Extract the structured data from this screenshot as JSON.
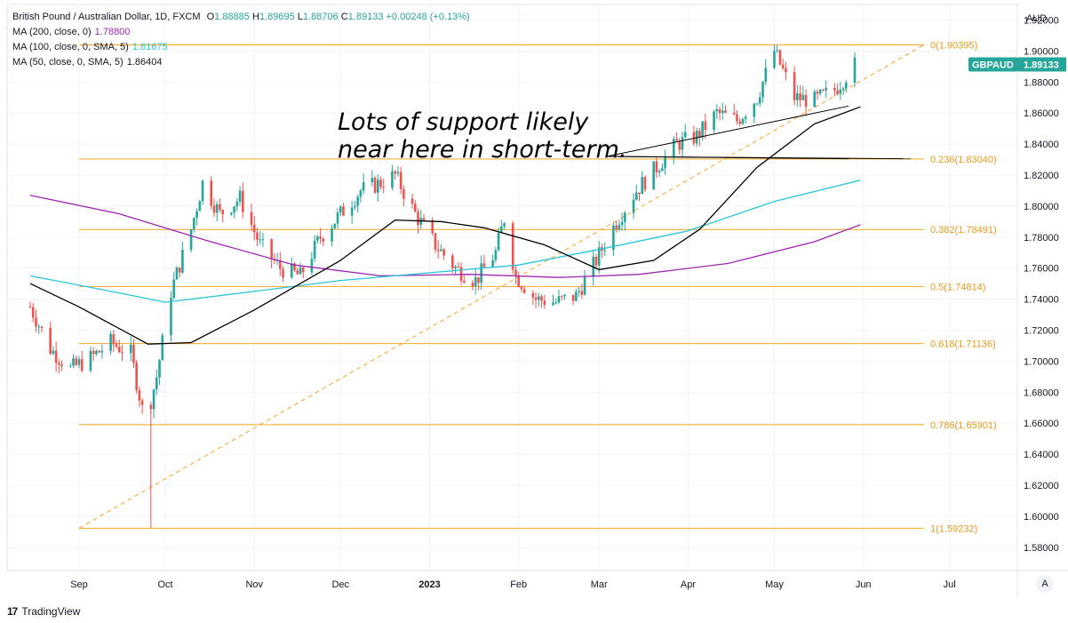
{
  "header": {
    "symbol_title": "British Pound / Australian Dollar, 1D, FXCM",
    "ohlc": {
      "open_label": "O",
      "open": "1.88885",
      "high_label": "H",
      "high": "1.89695",
      "low_label": "L",
      "low": "1.88706",
      "close_label": "C",
      "close": "1.89133",
      "change": "+0.00248 (+0.13%)"
    },
    "indicators": [
      {
        "label": "MA (200, close, 0)",
        "value": "1.78800",
        "color": "#9c27b0"
      },
      {
        "label": "MA (100, close, 0, SMA, 5)",
        "value": "1.81675",
        "color": "#26c6da"
      },
      {
        "label": "MA (50, close, 0, SMA, 5)",
        "value": "1.86404",
        "color": "#000000"
      }
    ]
  },
  "chart_data": {
    "type": "candlestick",
    "symbol": "GBPAUD",
    "last_price": "1.89133",
    "currency": "AUD",
    "ylim": [
      1.565,
      1.93
    ],
    "y_ticks": [
      "1.92000",
      "1.90000",
      "1.88000",
      "1.86000",
      "1.84000",
      "1.82000",
      "1.80000",
      "1.78000",
      "1.76000",
      "1.74000",
      "1.72000",
      "1.70000",
      "1.68000",
      "1.66000",
      "1.64000",
      "1.62000",
      "1.60000",
      "1.58000"
    ],
    "x_labels": [
      "Sep",
      "Oct",
      "Nov",
      "Dec",
      "2023",
      "Feb",
      "Mar",
      "Apr",
      "May",
      "Jun",
      "Jul"
    ],
    "fib_levels": [
      {
        "ratio": "0",
        "price": 1.90395,
        "label": "0(1.90395)"
      },
      {
        "ratio": "0.236",
        "price": 1.8304,
        "label": "0.236(1.83040)"
      },
      {
        "ratio": "0.382",
        "price": 1.78491,
        "label": "0.382(1.78491)"
      },
      {
        "ratio": "0.5",
        "price": 1.74814,
        "label": "0.5(1.74814)"
      },
      {
        "ratio": "0.618",
        "price": 1.71136,
        "label": "0.618(1.71136)"
      },
      {
        "ratio": "0.786",
        "price": 1.65901,
        "label": "0.786(1.65901)"
      },
      {
        "ratio": "1",
        "price": 1.59232,
        "label": "1(1.59232)"
      }
    ],
    "annotation": [
      "Lots of support likely",
      "near here in short-term."
    ],
    "price_path": [
      [
        "2022-08-15",
        1.735
      ],
      [
        "2022-08-22",
        1.708
      ],
      [
        "2022-08-29",
        1.695
      ],
      [
        "2022-09-05",
        1.702
      ],
      [
        "2022-09-12",
        1.712
      ],
      [
        "2022-09-19",
        1.705
      ],
      [
        "2022-09-24",
        1.66
      ],
      [
        "2022-09-28",
        1.69
      ],
      [
        "2022-10-03",
        1.745
      ],
      [
        "2022-10-10",
        1.785
      ],
      [
        "2022-10-14",
        1.815
      ],
      [
        "2022-10-20",
        1.795
      ],
      [
        "2022-10-27",
        1.805
      ],
      [
        "2022-11-03",
        1.775
      ],
      [
        "2022-11-10",
        1.76
      ],
      [
        "2022-11-17",
        1.755
      ],
      [
        "2022-11-24",
        1.78
      ],
      [
        "2022-12-01",
        1.795
      ],
      [
        "2022-12-08",
        1.81
      ],
      [
        "2022-12-15",
        1.815
      ],
      [
        "2022-12-20",
        1.82
      ],
      [
        "2022-12-27",
        1.795
      ],
      [
        "2023-01-03",
        1.775
      ],
      [
        "2023-01-10",
        1.76
      ],
      [
        "2023-01-17",
        1.752
      ],
      [
        "2023-01-24",
        1.77
      ],
      [
        "2023-01-27",
        1.792
      ],
      [
        "2023-01-31",
        1.755
      ],
      [
        "2023-02-07",
        1.74
      ],
      [
        "2023-02-14",
        1.738
      ],
      [
        "2023-02-21",
        1.742
      ],
      [
        "2023-02-28",
        1.765
      ],
      [
        "2023-03-07",
        1.79
      ],
      [
        "2023-03-14",
        1.81
      ],
      [
        "2023-03-21",
        1.825
      ],
      [
        "2023-03-28",
        1.84
      ],
      [
        "2023-04-04",
        1.845
      ],
      [
        "2023-04-11",
        1.86
      ],
      [
        "2023-04-18",
        1.855
      ],
      [
        "2023-04-25",
        1.87
      ],
      [
        "2023-05-01",
        1.9
      ],
      [
        "2023-05-08",
        1.87
      ],
      [
        "2023-05-15",
        1.868
      ],
      [
        "2023-05-22",
        1.875
      ],
      [
        "2023-05-29",
        1.891
      ]
    ],
    "ma200": [
      [
        "2022-08-15",
        1.807
      ],
      [
        "2022-09-15",
        1.795
      ],
      [
        "2022-10-15",
        1.778
      ],
      [
        "2022-11-15",
        1.762
      ],
      [
        "2022-12-15",
        1.755
      ],
      [
        "2023-01-15",
        1.756
      ],
      [
        "2023-02-15",
        1.754
      ],
      [
        "2023-03-15",
        1.756
      ],
      [
        "2023-04-15",
        1.763
      ],
      [
        "2023-05-15",
        1.777
      ],
      [
        "2023-05-31",
        1.788
      ]
    ],
    "ma100": [
      [
        "2022-08-15",
        1.755
      ],
      [
        "2022-09-15",
        1.744
      ],
      [
        "2022-10-01",
        1.738
      ],
      [
        "2022-11-01",
        1.745
      ],
      [
        "2022-12-01",
        1.752
      ],
      [
        "2023-01-01",
        1.757
      ],
      [
        "2023-02-01",
        1.762
      ],
      [
        "2023-03-01",
        1.772
      ],
      [
        "2023-04-01",
        1.784
      ],
      [
        "2023-05-01",
        1.803
      ],
      [
        "2023-05-31",
        1.8167
      ]
    ],
    "ma50": [
      [
        "2022-08-15",
        1.75
      ],
      [
        "2022-09-01",
        1.735
      ],
      [
        "2022-09-25",
        1.711
      ],
      [
        "2022-10-10",
        1.712
      ],
      [
        "2022-11-01",
        1.733
      ],
      [
        "2022-12-01",
        1.765
      ],
      [
        "2022-12-20",
        1.791
      ],
      [
        "2023-01-05",
        1.79
      ],
      [
        "2023-01-20",
        1.786
      ],
      [
        "2023-02-10",
        1.775
      ],
      [
        "2023-03-01",
        1.759
      ],
      [
        "2023-03-20",
        1.765
      ],
      [
        "2023-04-05",
        1.785
      ],
      [
        "2023-04-25",
        1.825
      ],
      [
        "2023-05-15",
        1.853
      ],
      [
        "2023-05-31",
        1.864
      ]
    ]
  },
  "controls": {
    "auto_label": "A"
  },
  "footer": {
    "logo_mark": "17",
    "brand": "TradingView"
  }
}
